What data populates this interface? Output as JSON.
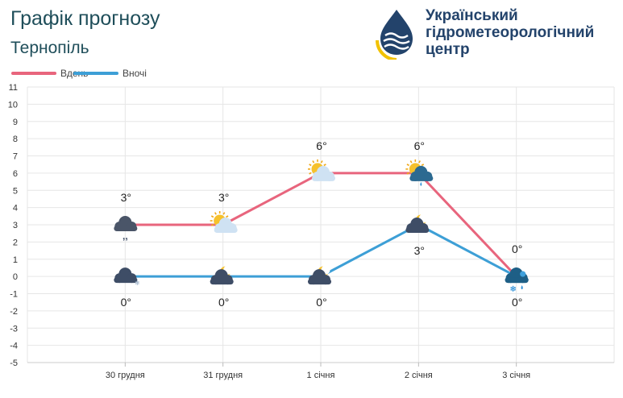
{
  "header": {
    "title": "Графік прогнозу",
    "city": "Тернопіль"
  },
  "logo": {
    "line1": "Український",
    "line2": "гідрометеорологічний",
    "line3": "центр"
  },
  "colors": {
    "day": "#e8657d",
    "night": "#3d9fd6",
    "grid": "#e6e6e6",
    "axis_text": "#333333"
  },
  "chart_data": {
    "type": "line",
    "categories": [
      "30 грудня",
      "31 грудня",
      "1 січня",
      "2 січня",
      "3 січня"
    ],
    "series": [
      {
        "name": "Вдень",
        "values": [
          3,
          3,
          6,
          6,
          0
        ],
        "labels": [
          "3°",
          "3°",
          "6°",
          "6°",
          "0°"
        ],
        "icons": [
          "cloud-drizzle-icon",
          "sun-cloud-icon",
          "sun-cloud-icon",
          "sun-cloud-rain-icon",
          "cloud-snow-rain-icon"
        ]
      },
      {
        "name": "Вночі",
        "values": [
          0,
          0,
          0,
          3,
          0
        ],
        "labels": [
          "0°",
          "0°",
          "0°",
          "3°",
          "0°"
        ],
        "icons": [
          "cloud-snow-icon",
          "moon-cloud-icon",
          "moon-cloud-icon",
          "moon-cloud-icon",
          "cloud-snow-rain-icon"
        ]
      }
    ],
    "ylim": [
      -5,
      11
    ],
    "yticks": [
      "-5",
      "-4",
      "-3",
      "-2",
      "-1",
      "0",
      "1",
      "2",
      "3",
      "4",
      "5",
      "6",
      "7",
      "8",
      "9",
      "10",
      "11"
    ],
    "legend_position": "top-left",
    "grid": true
  }
}
